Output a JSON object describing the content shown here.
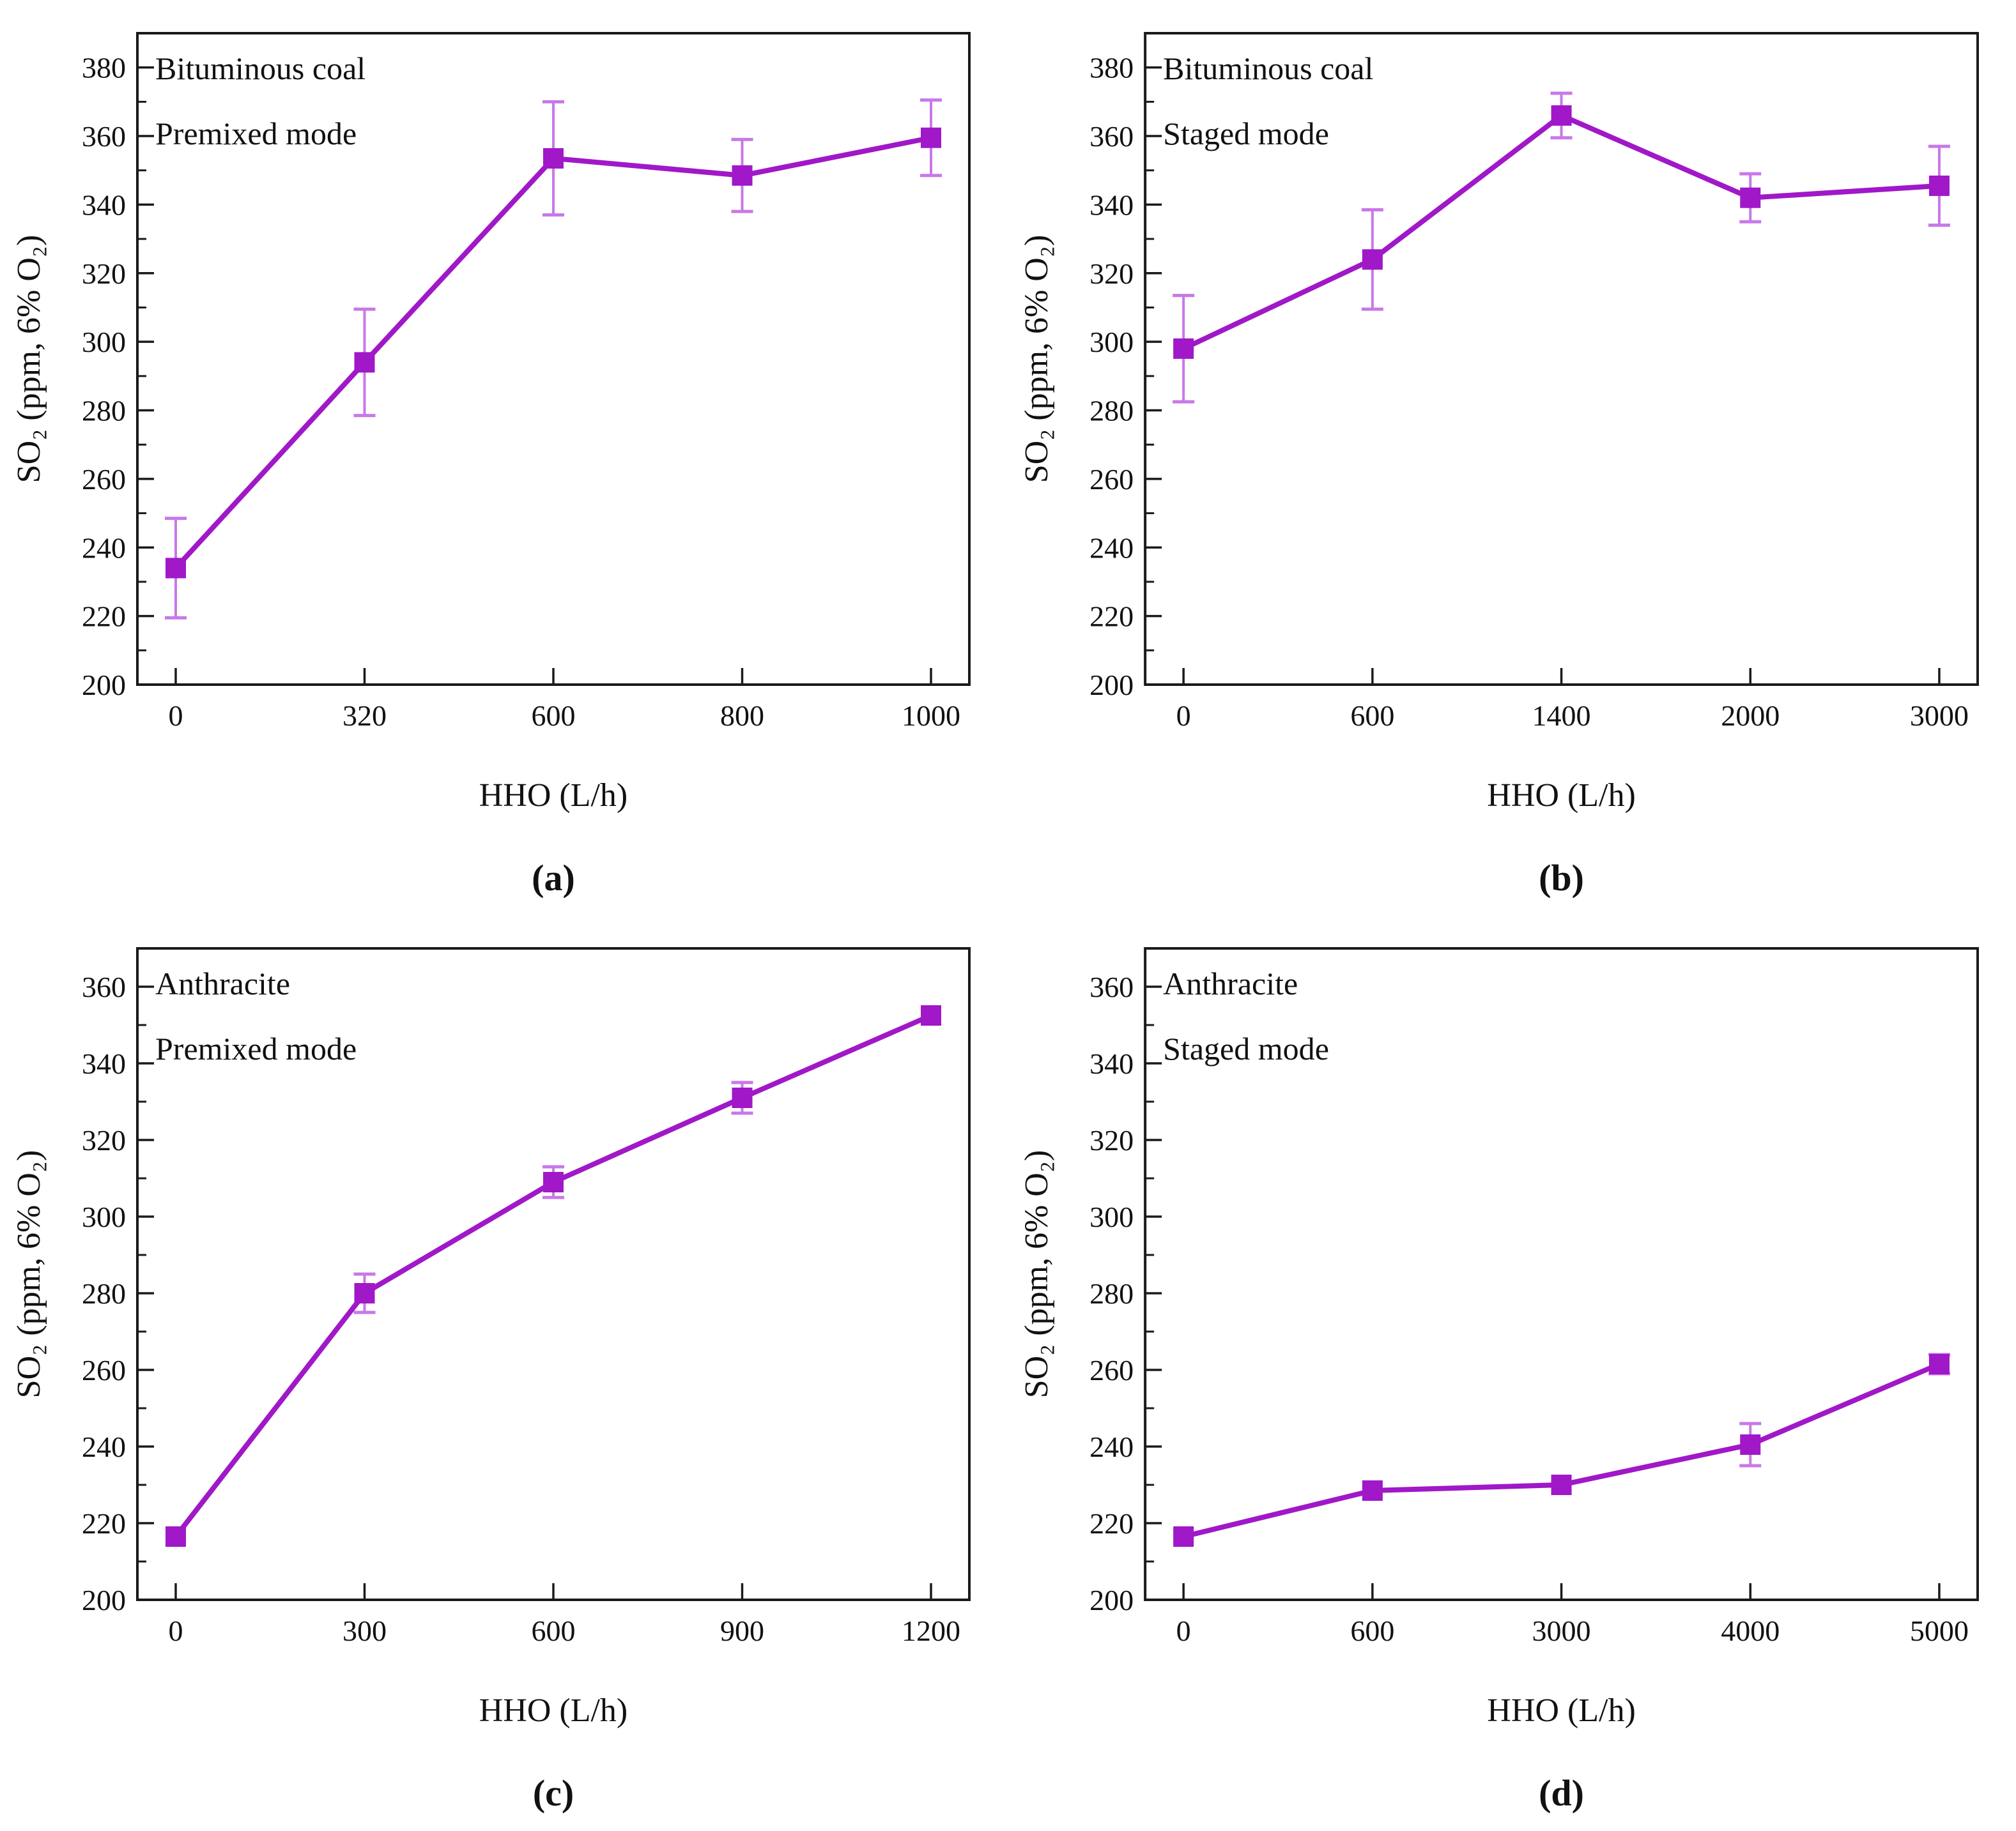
{
  "figure": {
    "background": "#ffffff",
    "line_color": "#A018C8",
    "marker_color": "#A018C8",
    "error_bar_color": "#C878E8",
    "axis_color": "#1a1a1a",
    "text_color": "#111111"
  },
  "chart_data": [
    {
      "type": "line",
      "panel": "a",
      "caption": "(a)",
      "annotation_line1": "Bituminous coal",
      "annotation_line2": "Premixed mode",
      "xlabel": "HHO (L/h)",
      "ylabel": "SO₂ (ppm, 6% O₂)",
      "categories": [
        "0",
        "320",
        "600",
        "800",
        "1000"
      ],
      "values": [
        234,
        294,
        353.5,
        348.5,
        359.5
      ],
      "errors": [
        14.5,
        15.5,
        16.5,
        10.5,
        11
      ],
      "ylim": [
        200,
        390
      ],
      "ytick_min": 200,
      "ytick_max": 380,
      "ytick_step": 20,
      "minor_tick_step": 10,
      "marker": "square",
      "grid": false,
      "legend_position": "none"
    },
    {
      "type": "line",
      "panel": "b",
      "caption": "(b)",
      "annotation_line1": "Bituminous coal",
      "annotation_line2": "Staged mode",
      "xlabel": "HHO (L/h)",
      "ylabel": "SO₂ (ppm, 6% O₂)",
      "categories": [
        "0",
        "600",
        "1400",
        "2000",
        "3000"
      ],
      "values": [
        298,
        324,
        366,
        342,
        345.5
      ],
      "errors": [
        15.5,
        14.5,
        6.5,
        7,
        11.5
      ],
      "ylim": [
        200,
        390
      ],
      "ytick_min": 200,
      "ytick_max": 380,
      "ytick_step": 20,
      "minor_tick_step": 10,
      "marker": "square",
      "grid": false,
      "legend_position": "none"
    },
    {
      "type": "line",
      "panel": "c",
      "caption": "(c)",
      "annotation_line1": "Anthracite",
      "annotation_line2": "Premixed mode",
      "xlabel": "HHO (L/h)",
      "ylabel": "SO₂ (ppm, 6% O₂)",
      "categories": [
        "0",
        "300",
        "600",
        "900",
        "1200"
      ],
      "values": [
        216.5,
        280,
        309,
        331,
        352.5
      ],
      "errors": [
        0,
        5,
        4,
        4,
        0
      ],
      "ylim": [
        200,
        370
      ],
      "ytick_min": 200,
      "ytick_max": 360,
      "ytick_step": 20,
      "minor_tick_step": 10,
      "marker": "square",
      "grid": false,
      "legend_position": "none"
    },
    {
      "type": "line",
      "panel": "d",
      "caption": "(d)",
      "annotation_line1": "Anthracite",
      "annotation_line2": "Staged mode",
      "xlabel": "HHO (L/h)",
      "ylabel": "SO₂ (ppm, 6% O₂)",
      "categories": [
        "0",
        "600",
        "3000",
        "4000",
        "5000"
      ],
      "values": [
        216.5,
        228.5,
        230,
        240.5,
        261.5
      ],
      "errors": [
        0,
        0,
        0,
        5.5,
        2.5
      ],
      "ylim": [
        200,
        370
      ],
      "ytick_min": 200,
      "ytick_max": 360,
      "ytick_step": 20,
      "minor_tick_step": 10,
      "marker": "square",
      "grid": false,
      "legend_position": "none"
    }
  ]
}
